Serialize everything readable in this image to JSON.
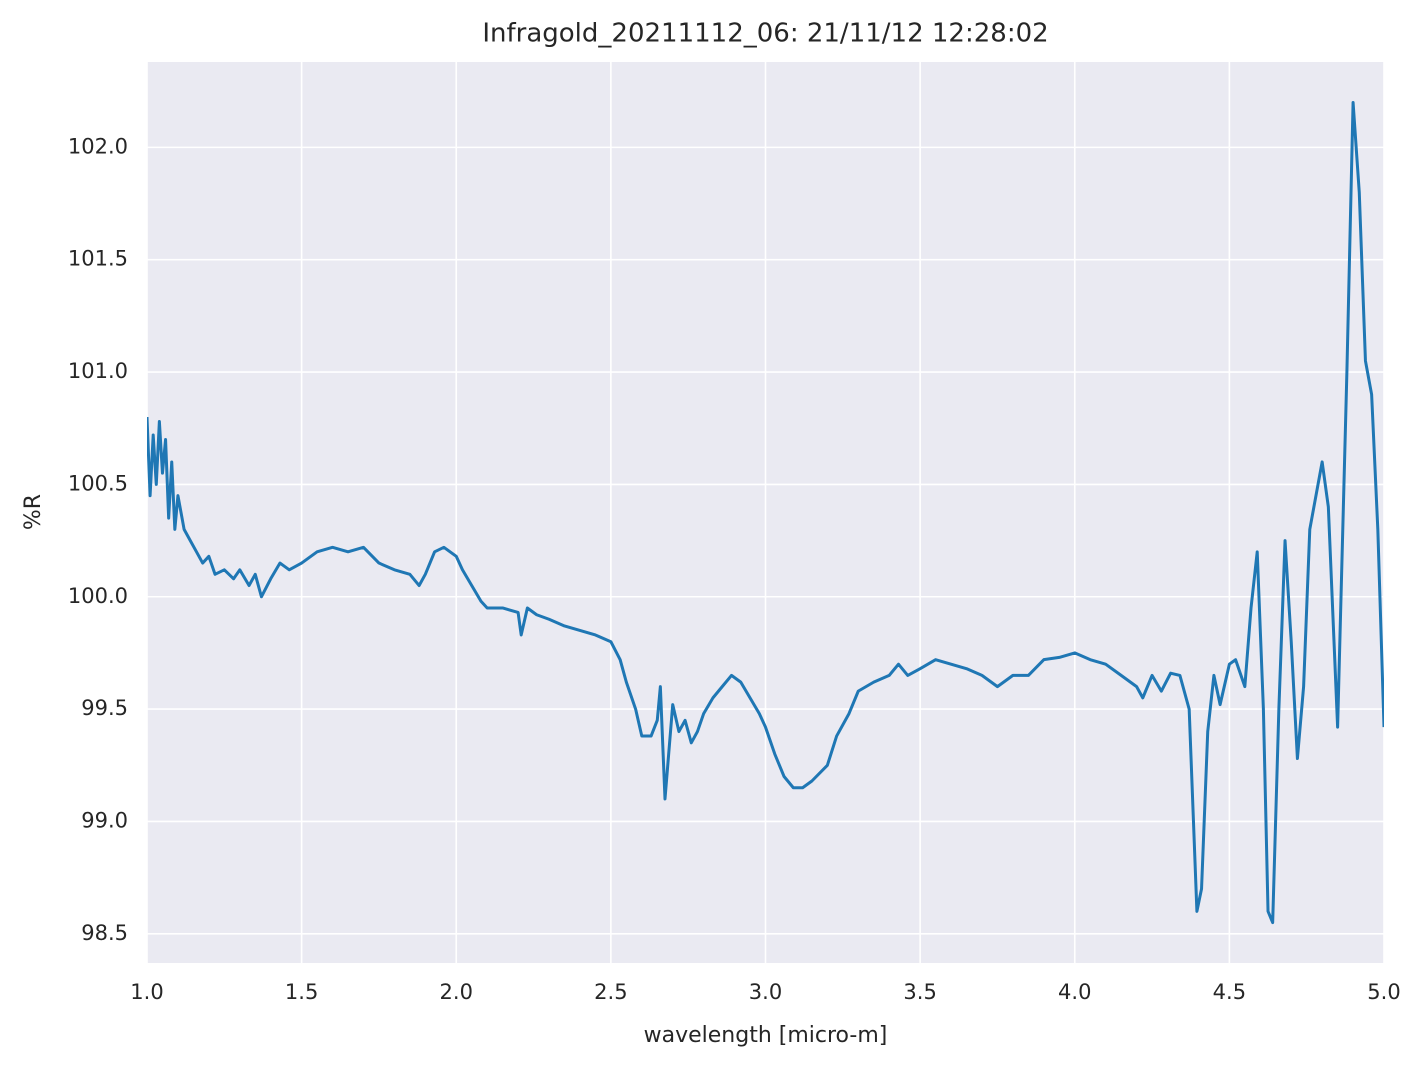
{
  "chart_data": {
    "type": "line",
    "title": "Infragold_20211112_06:  21/11/12 12:28:02",
    "xlabel": "wavelength [micro-m]",
    "ylabel": "%R",
    "xlim": [
      1.0,
      5.0
    ],
    "ylim": [
      98.37,
      102.38
    ],
    "xticks": [
      {
        "value": 1.0,
        "label": "1.0"
      },
      1.5,
      {
        "value": 2.0,
        "label": "2.0"
      },
      2.5,
      {
        "value": 3.0,
        "label": "3.0"
      },
      3.5,
      {
        "value": 4.0,
        "label": "4.0"
      },
      4.5,
      {
        "value": 5.0,
        "label": "5.0"
      }
    ],
    "yticks": [
      98.5,
      {
        "value": 99.0,
        "label": "99.0"
      },
      99.5,
      {
        "value": 100.0,
        "label": "100.0"
      },
      100.5,
      {
        "value": 101.0,
        "label": "101.0"
      },
      101.5,
      {
        "value": 102.0,
        "label": "102.0"
      }
    ],
    "grid": true,
    "x": [
      1.0,
      1.01,
      1.02,
      1.03,
      1.04,
      1.05,
      1.06,
      1.07,
      1.08,
      1.09,
      1.1,
      1.12,
      1.14,
      1.16,
      1.18,
      1.2,
      1.22,
      1.25,
      1.28,
      1.3,
      1.33,
      1.35,
      1.37,
      1.4,
      1.43,
      1.46,
      1.5,
      1.55,
      1.6,
      1.65,
      1.7,
      1.75,
      1.8,
      1.85,
      1.88,
      1.9,
      1.93,
      1.96,
      2.0,
      2.02,
      2.05,
      2.08,
      2.1,
      2.15,
      2.2,
      2.21,
      2.23,
      2.26,
      2.3,
      2.35,
      2.4,
      2.45,
      2.5,
      2.53,
      2.55,
      2.58,
      2.6,
      2.63,
      2.65,
      2.66,
      2.675,
      2.7,
      2.72,
      2.74,
      2.76,
      2.78,
      2.8,
      2.83,
      2.86,
      2.89,
      2.92,
      2.95,
      2.98,
      3.0,
      3.03,
      3.06,
      3.09,
      3.12,
      3.15,
      3.2,
      3.23,
      3.27,
      3.3,
      3.35,
      3.4,
      3.43,
      3.46,
      3.5,
      3.55,
      3.6,
      3.65,
      3.7,
      3.75,
      3.8,
      3.85,
      3.9,
      3.95,
      4.0,
      4.05,
      4.1,
      4.15,
      4.2,
      4.22,
      4.25,
      4.28,
      4.31,
      4.34,
      4.37,
      4.395,
      4.41,
      4.43,
      4.45,
      4.47,
      4.5,
      4.52,
      4.55,
      4.57,
      4.59,
      4.61,
      4.625,
      4.64,
      4.66,
      4.68,
      4.7,
      4.72,
      4.74,
      4.76,
      4.8,
      4.82,
      4.85,
      4.88,
      4.9,
      4.92,
      4.94,
      4.96,
      4.98,
      5.0
    ],
    "series": [
      {
        "color": "#1f77b4",
        "values": [
          100.8,
          100.45,
          100.72,
          100.5,
          100.78,
          100.55,
          100.7,
          100.35,
          100.6,
          100.3,
          100.45,
          100.3,
          100.25,
          100.2,
          100.15,
          100.18,
          100.1,
          100.12,
          100.08,
          100.12,
          100.05,
          100.1,
          100.0,
          100.08,
          100.15,
          100.12,
          100.15,
          100.2,
          100.22,
          100.2,
          100.22,
          100.15,
          100.12,
          100.1,
          100.05,
          100.1,
          100.2,
          100.22,
          100.18,
          100.12,
          100.05,
          99.98,
          99.95,
          99.95,
          99.93,
          99.83,
          99.95,
          99.92,
          99.9,
          99.87,
          99.85,
          99.83,
          99.8,
          99.72,
          99.62,
          99.5,
          99.38,
          99.38,
          99.45,
          99.6,
          99.1,
          99.52,
          99.4,
          99.45,
          99.35,
          99.4,
          99.48,
          99.55,
          99.6,
          99.65,
          99.62,
          99.55,
          99.48,
          99.42,
          99.3,
          99.2,
          99.15,
          99.15,
          99.18,
          99.25,
          99.38,
          99.48,
          99.58,
          99.62,
          99.65,
          99.7,
          99.65,
          99.68,
          99.72,
          99.7,
          99.68,
          99.65,
          99.6,
          99.65,
          99.65,
          99.72,
          99.73,
          99.75,
          99.72,
          99.7,
          99.65,
          99.6,
          99.55,
          99.65,
          99.58,
          99.66,
          99.65,
          99.5,
          98.6,
          98.7,
          99.4,
          99.65,
          99.52,
          99.7,
          99.72,
          99.6,
          99.95,
          100.2,
          99.5,
          98.6,
          98.55,
          99.5,
          100.25,
          99.8,
          99.28,
          99.6,
          100.3,
          100.6,
          100.4,
          99.42,
          101.0,
          102.2,
          101.8,
          101.05,
          100.9,
          100.3,
          99.42
        ]
      }
    ]
  }
}
